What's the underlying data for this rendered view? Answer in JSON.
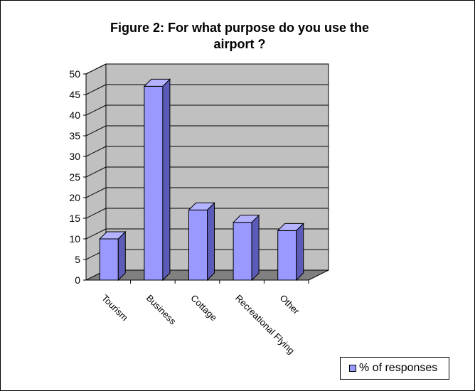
{
  "chart_data": {
    "type": "bar",
    "title_lines": [
      "Figure 2: For what purpose do you use the",
      "airport ?"
    ],
    "categories": [
      "Tourism",
      "Business",
      "Cottage",
      "Recreational Flying",
      "Other"
    ],
    "series": [
      {
        "name": "% of responses",
        "values": [
          10,
          47,
          17,
          14,
          12
        ]
      }
    ],
    "yticks": [
      "0",
      "5",
      "10",
      "15",
      "20",
      "25",
      "30",
      "35",
      "40",
      "45",
      "50"
    ],
    "ylim": [
      0,
      50
    ],
    "grid": true,
    "three_d": true,
    "legend_position": "bottom-right",
    "colors": {
      "bar_front": "#9999ff",
      "bar_side": "#5c5cb8",
      "bar_top": "#b3b3ff",
      "wall": "#c0c0c0",
      "floor": "#808080"
    }
  }
}
